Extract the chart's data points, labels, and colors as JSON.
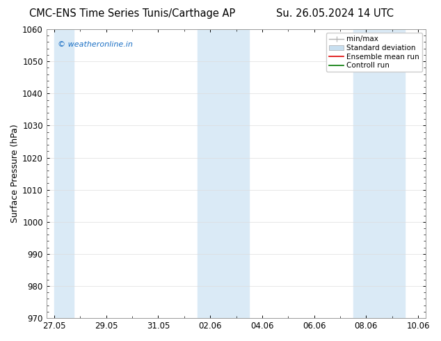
{
  "title": "CMC-ENS Time Series Tunis/Carthage AP",
  "title2": "Su. 26.05.2024 14 UTC",
  "ylabel": "Surface Pressure (hPa)",
  "ylim": [
    970,
    1060
  ],
  "yticks": [
    970,
    980,
    990,
    1000,
    1010,
    1020,
    1030,
    1040,
    1050,
    1060
  ],
  "xtick_labels": [
    "27.05",
    "29.05",
    "31.05",
    "02.06",
    "04.06",
    "06.06",
    "08.06",
    "10.06"
  ],
  "xlim_days": [
    0,
    14
  ],
  "shaded_bands": [
    {
      "x_start": 0.0,
      "x_end": 0.75,
      "color": "#daeaf6"
    },
    {
      "x_start": 5.5,
      "x_end": 7.5,
      "color": "#daeaf6"
    },
    {
      "x_start": 11.5,
      "x_end": 13.5,
      "color": "#daeaf6"
    }
  ],
  "watermark_text": "© weatheronline.in",
  "watermark_color": "#1a6fc4",
  "legend_items": [
    {
      "label": "min/max",
      "color": "#b0b0b0",
      "lw": 1.0,
      "style": "minmax"
    },
    {
      "label": "Standard deviation",
      "color": "#c8dff0",
      "lw": 5,
      "style": "thick"
    },
    {
      "label": "Ensemble mean run",
      "color": "#dd0000",
      "lw": 1.2,
      "style": "solid"
    },
    {
      "label": "Controll run",
      "color": "#007700",
      "lw": 1.2,
      "style": "solid"
    }
  ],
  "bg_color": "#ffffff",
  "plot_bg_color": "#ffffff",
  "tick_label_fontsize": 8.5,
  "axis_label_fontsize": 9,
  "title_fontsize": 10.5
}
